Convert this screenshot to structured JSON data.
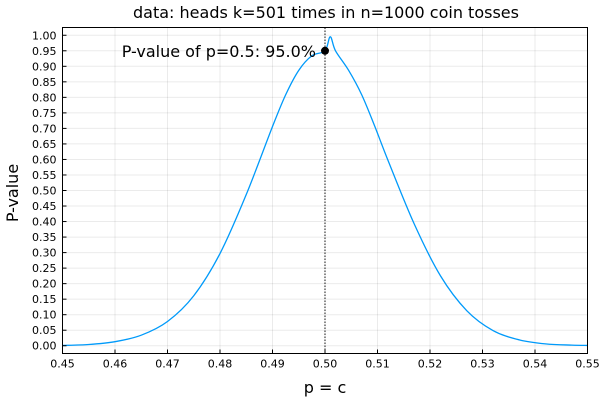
{
  "chart_data": {
    "type": "line",
    "title": "data: heads k=501 times in n=1000 coin tosses",
    "xlabel": "p = c",
    "ylabel": "P-value",
    "xlim": [
      0.45,
      0.55
    ],
    "ylim": [
      -0.025,
      1.025
    ],
    "grid": true,
    "legend": "none",
    "x_ticks": [
      "0.45",
      "0.46",
      "0.47",
      "0.48",
      "0.49",
      "0.50",
      "0.51",
      "0.52",
      "0.53",
      "0.54",
      "0.55"
    ],
    "y_ticks": [
      "0.00",
      "0.05",
      "0.10",
      "0.15",
      "0.20",
      "0.25",
      "0.30",
      "0.35",
      "0.40",
      "0.45",
      "0.50",
      "0.55",
      "0.60",
      "0.65",
      "0.70",
      "0.75",
      "0.80",
      "0.85",
      "0.90",
      "0.95",
      "1.00"
    ],
    "series": [
      {
        "color": "#009AFA",
        "x": [
          0.45,
          0.455,
          0.46,
          0.465,
          0.47,
          0.475,
          0.48,
          0.485,
          0.49,
          0.4925,
          0.495,
          0.4975,
          0.5,
          0.501,
          0.502,
          0.5045,
          0.507,
          0.5095,
          0.512,
          0.517,
          0.522,
          0.527,
          0.532,
          0.537,
          0.542,
          0.547,
          0.55
        ],
        "y": [
          0.001,
          0.004,
          0.013,
          0.034,
          0.078,
          0.161,
          0.297,
          0.487,
          0.706,
          0.808,
          0.887,
          0.934,
          0.95,
          0.995,
          0.95,
          0.887,
          0.808,
          0.706,
          0.597,
          0.392,
          0.225,
          0.113,
          0.049,
          0.019,
          0.006,
          0.002,
          0.001
        ]
      }
    ],
    "reference_line": {
      "x": 0.5,
      "style": "dotted",
      "color": "#000000"
    },
    "marker": {
      "x": 0.5,
      "y": 0.95,
      "color": "#000000"
    },
    "annotation": {
      "text": "P-value of p=0.5: 95.0%",
      "x": 0.5,
      "y": 0.95
    }
  }
}
